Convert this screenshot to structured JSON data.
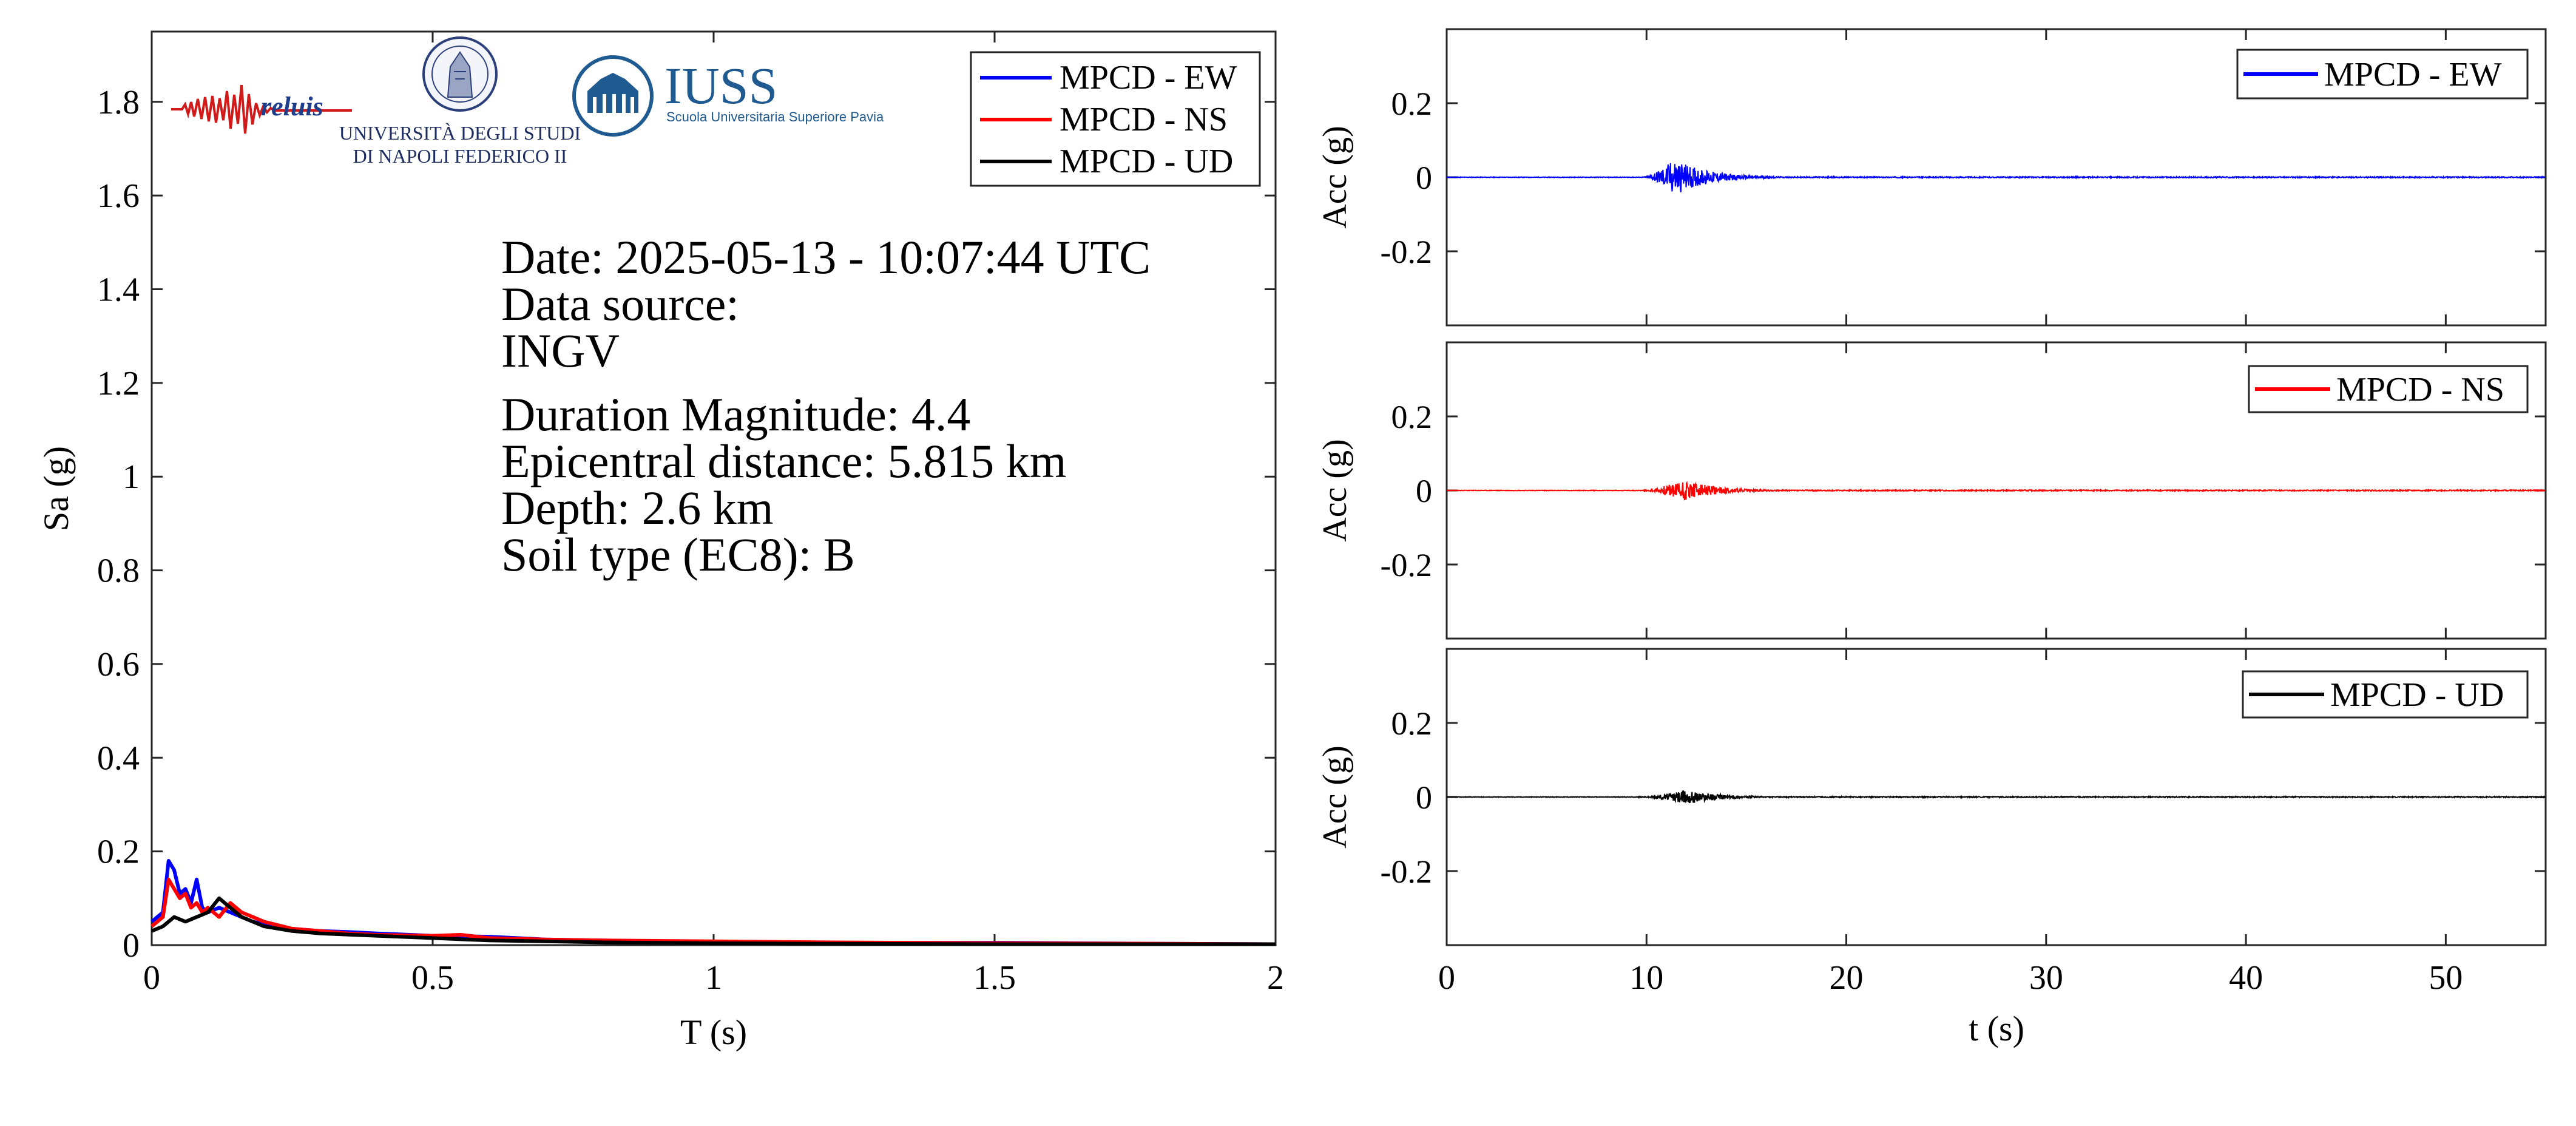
{
  "logos": {
    "reluis": "reluis",
    "unina_line1": "UNIVERSITÀ DEGLI STUDI",
    "unina_line2": "DI NAPOLI FEDERICO II",
    "iuss_title": "IUSS",
    "iuss_subtitle": "Scuola Universitaria Superiore Pavia"
  },
  "info": {
    "date": "Date: 2025-05-13 - 10:07:44 UTC",
    "source_label": "Data source:",
    "source_value": "INGV",
    "magnitude": "Duration Magnitude: 4.4",
    "epicentral": "Epicentral distance: 5.815 km",
    "depth": "Depth: 2.6 km",
    "soil": "Soil type (EC8): B"
  },
  "colors": {
    "EW": "#0000ff",
    "NS": "#ff0000",
    "UD": "#000000"
  },
  "chart_data": [
    {
      "type": "line",
      "xlabel": "T (s)",
      "ylabel": "Sa (g)",
      "xlim": [
        0,
        2
      ],
      "ylim": [
        0,
        1.95
      ],
      "xticks": [
        0,
        0.5,
        1,
        1.5,
        2
      ],
      "xtick_labels": [
        "0",
        "0.5",
        "1",
        "1.5",
        "2"
      ],
      "yticks": [
        0,
        0.2,
        0.4,
        0.6,
        0.8,
        1,
        1.2,
        1.4,
        1.6,
        1.8
      ],
      "ytick_labels": [
        "0",
        "0.2",
        "0.4",
        "0.6",
        "0.8",
        "1",
        "1.2",
        "1.4",
        "1.6",
        "1.8"
      ],
      "legend_position": "top-right",
      "series": [
        {
          "name": "MPCD - EW",
          "color": "#0000ff",
          "x": [
            0,
            0.02,
            0.03,
            0.04,
            0.05,
            0.06,
            0.07,
            0.08,
            0.09,
            0.1,
            0.12,
            0.14,
            0.16,
            0.18,
            0.2,
            0.25,
            0.3,
            0.35,
            0.4,
            0.5,
            0.6,
            0.7,
            0.8,
            1.0,
            1.2,
            1.5,
            1.8,
            2.0
          ],
          "y": [
            0.05,
            0.07,
            0.18,
            0.16,
            0.11,
            0.12,
            0.09,
            0.14,
            0.08,
            0.07,
            0.08,
            0.07,
            0.06,
            0.05,
            0.045,
            0.035,
            0.03,
            0.028,
            0.025,
            0.02,
            0.018,
            0.012,
            0.01,
            0.007,
            0.005,
            0.005,
            0.003,
            0.002
          ]
        },
        {
          "name": "MPCD - NS",
          "color": "#ff0000",
          "x": [
            0,
            0.02,
            0.03,
            0.04,
            0.05,
            0.06,
            0.07,
            0.08,
            0.09,
            0.1,
            0.12,
            0.14,
            0.16,
            0.18,
            0.2,
            0.25,
            0.3,
            0.35,
            0.4,
            0.5,
            0.55,
            0.6,
            0.7,
            0.8,
            1.0,
            1.2,
            1.5,
            1.8,
            2.0
          ],
          "y": [
            0.04,
            0.06,
            0.14,
            0.12,
            0.1,
            0.11,
            0.08,
            0.09,
            0.07,
            0.08,
            0.06,
            0.09,
            0.07,
            0.06,
            0.05,
            0.035,
            0.03,
            0.025,
            0.022,
            0.02,
            0.022,
            0.015,
            0.012,
            0.01,
            0.008,
            0.006,
            0.004,
            0.003,
            0.002
          ]
        },
        {
          "name": "MPCD - UD",
          "color": "#000000",
          "x": [
            0,
            0.02,
            0.04,
            0.06,
            0.08,
            0.1,
            0.12,
            0.14,
            0.16,
            0.18,
            0.2,
            0.25,
            0.3,
            0.4,
            0.5,
            0.6,
            0.7,
            0.8,
            1.0,
            1.2,
            1.5,
            1.8,
            2.0
          ],
          "y": [
            0.03,
            0.04,
            0.06,
            0.05,
            0.06,
            0.07,
            0.1,
            0.08,
            0.06,
            0.05,
            0.04,
            0.03,
            0.025,
            0.02,
            0.015,
            0.01,
            0.008,
            0.006,
            0.004,
            0.003,
            0.002,
            0.002,
            0.002
          ]
        }
      ]
    },
    {
      "type": "line",
      "xlabel": "",
      "ylabel": "Acc (g)",
      "xlim": [
        0,
        55
      ],
      "ylim": [
        -0.4,
        0.4
      ],
      "yticks": [
        -0.2,
        0,
        0.2
      ],
      "ytick_labels": [
        "-0.2",
        "0",
        "0.2"
      ],
      "legend_position": "top-right",
      "series": [
        {
          "name": "MPCD - EW",
          "color": "#0000ff",
          "signal_start_s": 9.8,
          "peak_time_s": 11.4,
          "peak_abs_g": 0.05,
          "coda_end_s": 20
        }
      ]
    },
    {
      "type": "line",
      "xlabel": "",
      "ylabel": "Acc (g)",
      "xlim": [
        0,
        55
      ],
      "ylim": [
        -0.4,
        0.4
      ],
      "yticks": [
        -0.2,
        0,
        0.2
      ],
      "ytick_labels": [
        "-0.2",
        "0",
        "0.2"
      ],
      "legend_position": "top-right",
      "series": [
        {
          "name": "MPCD - NS",
          "color": "#ff0000",
          "signal_start_s": 9.8,
          "peak_time_s": 11.8,
          "peak_abs_g": 0.03,
          "coda_end_s": 21
        }
      ]
    },
    {
      "type": "line",
      "xlabel": "t (s)",
      "ylabel": "Acc (g)",
      "xlim": [
        0,
        55
      ],
      "ylim": [
        -0.4,
        0.4
      ],
      "xticks": [
        0,
        10,
        20,
        30,
        40,
        50
      ],
      "xtick_labels": [
        "0",
        "10",
        "20",
        "30",
        "40",
        "50"
      ],
      "yticks": [
        -0.2,
        0,
        0.2
      ],
      "ytick_labels": [
        "-0.2",
        "0",
        "0.2"
      ],
      "legend_position": "top-right",
      "series": [
        {
          "name": "MPCD - UD",
          "color": "#000000",
          "signal_start_s": 9.6,
          "peak_time_s": 12.0,
          "peak_abs_g": 0.02,
          "coda_end_s": 16
        }
      ]
    }
  ]
}
